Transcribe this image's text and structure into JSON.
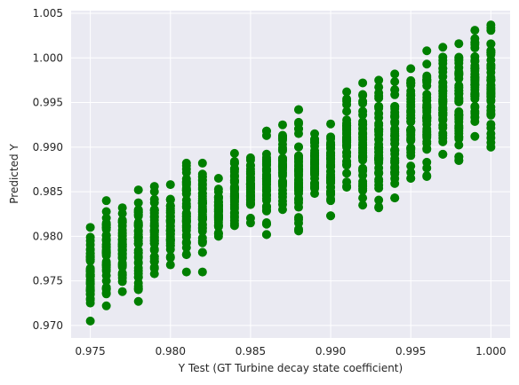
{
  "chart_data": {
    "type": "scatter",
    "title": "",
    "xlabel": "Y Test (GT Turbine decay state coefficient)",
    "ylabel": "Predicted Y",
    "xlim": [
      0.9738,
      1.0012
    ],
    "ylim": [
      0.9686,
      1.0053
    ],
    "x_ticks": [
      0.975,
      0.98,
      0.985,
      0.99,
      0.995,
      1.0
    ],
    "x_tick_labels": [
      "0.975",
      "0.980",
      "0.985",
      "0.990",
      "0.995",
      "1.000"
    ],
    "y_ticks": [
      0.97,
      0.975,
      0.98,
      0.985,
      0.99,
      0.995,
      1.0,
      1.005
    ],
    "y_tick_labels": [
      "0.970",
      "0.975",
      "0.980",
      "0.985",
      "0.990",
      "0.995",
      "1.000",
      "1.005"
    ],
    "grid": true,
    "background": "#eaeaf2",
    "marker_color": "#007f00",
    "x_levels": [
      0.975,
      0.976,
      0.977,
      0.978,
      0.979,
      0.98,
      0.981,
      0.982,
      0.983,
      0.984,
      0.985,
      0.986,
      0.987,
      0.988,
      0.989,
      0.99,
      0.991,
      0.992,
      0.993,
      0.994,
      0.995,
      0.996,
      0.997,
      0.998,
      0.999,
      1.0
    ],
    "y_ranges": [
      [
        0.9705,
        0.981
      ],
      [
        0.9722,
        0.984
      ],
      [
        0.9738,
        0.9832
      ],
      [
        0.9727,
        0.9852
      ],
      [
        0.9758,
        0.9856
      ],
      [
        0.9768,
        0.9858
      ],
      [
        0.976,
        0.9882
      ],
      [
        0.9782,
        0.9882
      ],
      [
        0.98,
        0.9865
      ],
      [
        0.9812,
        0.9893
      ],
      [
        0.9815,
        0.9888
      ],
      [
        0.9802,
        0.9918
      ],
      [
        0.983,
        0.9925
      ],
      [
        0.9808,
        0.9942
      ],
      [
        0.9848,
        0.9915
      ],
      [
        0.9823,
        0.9926
      ],
      [
        0.9855,
        0.9962
      ],
      [
        0.9835,
        0.9972
      ],
      [
        0.9833,
        0.9975
      ],
      [
        0.9843,
        0.9982
      ],
      [
        0.9865,
        0.9988
      ],
      [
        0.9867,
        1.0008
      ],
      [
        0.9892,
        1.0012
      ],
      [
        0.9885,
        1.0016
      ],
      [
        0.9912,
        1.0031
      ],
      [
        0.99,
        1.0037
      ]
    ],
    "points_per_level": 45,
    "outliers": [
      {
        "x": 0.982,
        "y": 0.976
      },
      {
        "x": 0.986,
        "y": 0.9802
      },
      {
        "x": 0.988,
        "y": 0.9806
      },
      {
        "x": 0.99,
        "y": 0.9823
      },
      {
        "x": 0.992,
        "y": 0.9843
      },
      {
        "x": 0.993,
        "y": 0.9832
      },
      {
        "x": 0.994,
        "y": 0.9843
      },
      {
        "x": 0.995,
        "y": 0.9865
      },
      {
        "x": 0.996,
        "y": 0.9868
      },
      {
        "x": 0.998,
        "y": 0.9885
      },
      {
        "x": 0.997,
        "y": 0.9892
      },
      {
        "x": 0.982,
        "y": 0.9782
      },
      {
        "x": 0.988,
        "y": 0.9942
      },
      {
        "x": 0.986,
        "y": 0.9918
      }
    ]
  }
}
